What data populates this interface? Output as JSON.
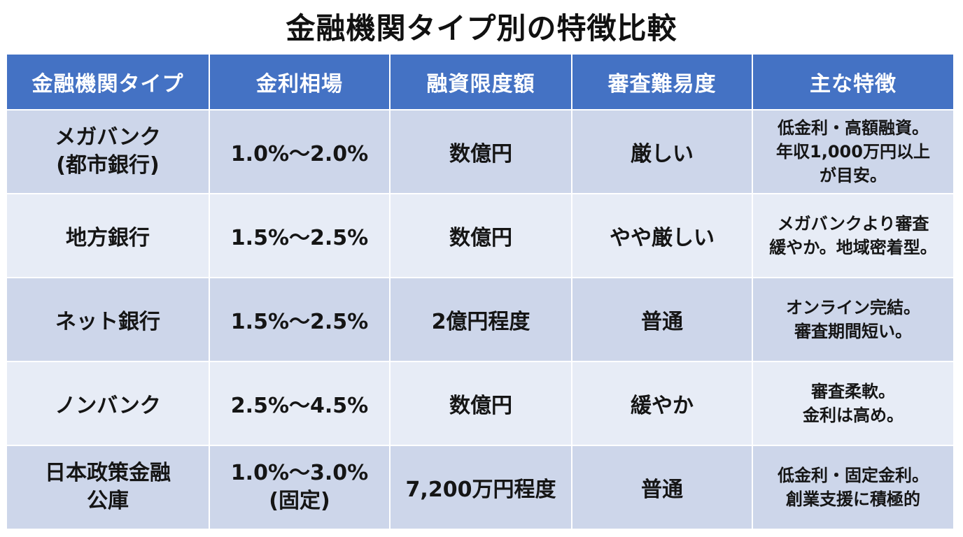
{
  "title": "金融機関タイプ別の特徴比較",
  "colors": {
    "header_bg": "#4472c4",
    "header_text": "#ffffff",
    "row_dark": "#cdd6ea",
    "row_light": "#e7ecf6"
  },
  "table": {
    "headers": [
      "金融機関タイプ",
      "金利相場",
      "融資限度額",
      "審査難易度",
      "主な特徴"
    ],
    "rows": [
      {
        "type": [
          "メガバンク",
          "(都市銀行)"
        ],
        "rate": [
          "1.0%〜2.0%"
        ],
        "limit": "数億円",
        "difficulty": "厳しい",
        "feature": [
          "低金利・高額融資。",
          "年収1,000万円以上",
          "が目安。"
        ]
      },
      {
        "type": [
          "地方銀行"
        ],
        "rate": [
          "1.5%〜2.5%"
        ],
        "limit": "数億円",
        "difficulty": "やや厳しい",
        "feature": [
          "メガバンクより審査",
          "緩やか。地域密着型。"
        ]
      },
      {
        "type": [
          "ネット銀行"
        ],
        "rate": [
          "1.5%〜2.5%"
        ],
        "limit": "2億円程度",
        "difficulty": "普通",
        "feature": [
          "オンライン完結。",
          "審査期間短い。"
        ]
      },
      {
        "type": [
          "ノンバンク"
        ],
        "rate": [
          "2.5%〜4.5%"
        ],
        "limit": "数億円",
        "difficulty": "緩やか",
        "feature": [
          "審査柔軟。",
          "金利は高め。"
        ]
      },
      {
        "type": [
          "日本政策金融",
          "公庫"
        ],
        "rate": [
          "1.0%〜3.0%",
          "(固定)"
        ],
        "limit": "7,200万円程度",
        "difficulty": "普通",
        "feature": [
          "低金利・固定金利。",
          "創業支援に積極的"
        ]
      }
    ]
  }
}
